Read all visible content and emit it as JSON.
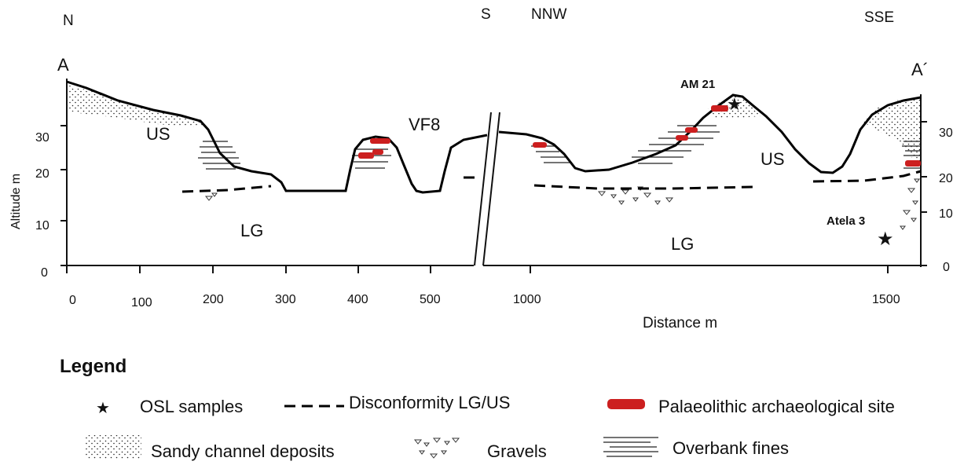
{
  "directions": {
    "left": "N",
    "mid_left": "S",
    "mid_right": "NNW",
    "right": "SSE"
  },
  "section": {
    "start": "A",
    "end": "A´"
  },
  "axis": {
    "ylabel": "Altitude m",
    "xlabel": "Distance m",
    "y_ticks_left": [
      "0",
      "10",
      "20",
      "30"
    ],
    "y_ticks_right": [
      "0",
      "10",
      "20",
      "30"
    ],
    "x_ticks": [
      "0",
      "100",
      "200",
      "300",
      "400",
      "500",
      "1000",
      "1500"
    ]
  },
  "units": {
    "us_left": "US",
    "lg_left": "LG",
    "vf8": "VF8",
    "us_right": "US",
    "lg_right": "LG"
  },
  "samples": {
    "am21": "AM 21",
    "atela3": "Atela 3"
  },
  "legend": {
    "title": "Legend",
    "osl": "OSL samples",
    "disconformity": "Disconformity LG/US",
    "palaeolithic": "Palaeolithic archaeological site",
    "sandy": "Sandy channel deposits",
    "gravels": "Gravels",
    "overbank": "Overbank fines"
  },
  "colors": {
    "site": "#cc1f1f",
    "ink": "#111111"
  }
}
